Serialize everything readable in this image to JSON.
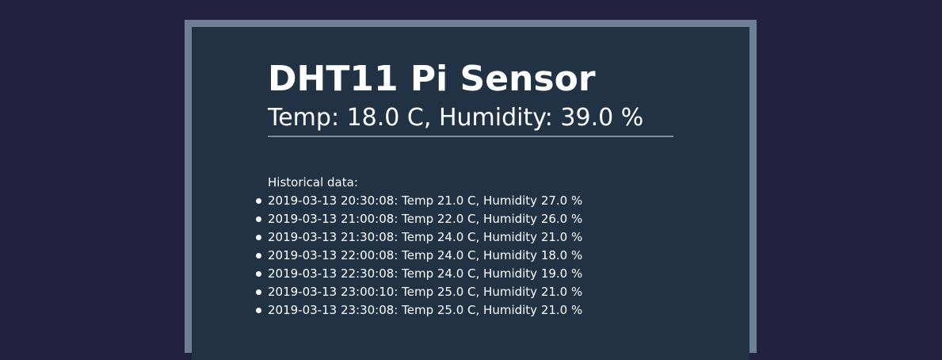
{
  "header": {
    "title": "DHT11 Pi Sensor",
    "current_reading": "Temp: 18.0 C, Humidity: 39.0 %"
  },
  "history": {
    "title": "Historical data:",
    "entries": [
      "2019-03-13 20:30:08: Temp 21.0 C, Humidity 27.0 %",
      "2019-03-13 21:00:08: Temp 22.0 C, Humidity 26.0 %",
      "2019-03-13 21:30:08: Temp 24.0 C, Humidity 21.0 %",
      "2019-03-13 22:00:08: Temp 24.0 C, Humidity 18.0 %",
      "2019-03-13 22:30:08: Temp 24.0 C, Humidity 19.0 %",
      "2019-03-13 23:00:10: Temp 25.0 C, Humidity 21.0 %",
      "2019-03-13 23:30:08: Temp 25.0 C, Humidity 21.0 %"
    ]
  },
  "colors": {
    "page_background": "#22213f",
    "frame_border": "#6e8095",
    "panel_background": "#213244",
    "text": "#ffffff"
  }
}
